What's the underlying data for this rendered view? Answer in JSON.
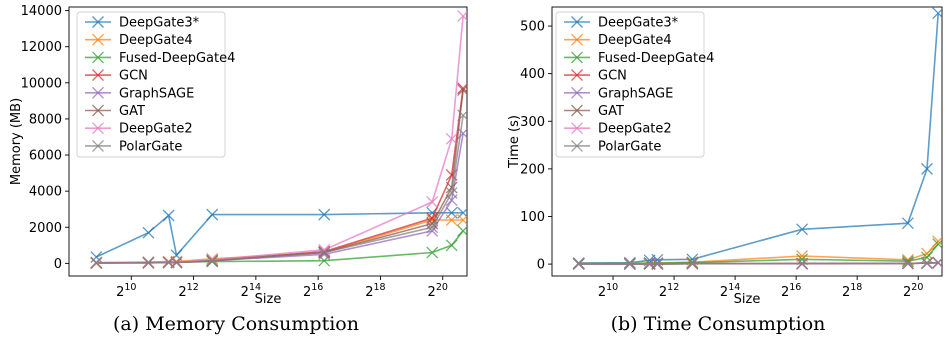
{
  "chart_data": [
    {
      "type": "line",
      "caption": "(a) Memory Consumption",
      "xlabel": "Size",
      "ylabel": "Memory (MB)",
      "xscale": "log2",
      "xlim": [
        256,
        1800000
      ],
      "ylim": [
        -700,
        14200
      ],
      "xticks": [
        {
          "value": 1024,
          "base": "2",
          "exp": "10"
        },
        {
          "value": 4096,
          "base": "2",
          "exp": "12"
        },
        {
          "value": 16384,
          "base": "2",
          "exp": "14"
        },
        {
          "value": 65536,
          "base": "2",
          "exp": "16"
        },
        {
          "value": 262144,
          "base": "2",
          "exp": "18"
        },
        {
          "value": 1048576,
          "base": "2",
          "exp": "20"
        }
      ],
      "yticks": [
        {
          "value": 0,
          "label": "0"
        },
        {
          "value": 2000,
          "label": "2000"
        },
        {
          "value": 4000,
          "label": "4000"
        },
        {
          "value": 6000,
          "label": "6000"
        },
        {
          "value": 8000,
          "label": "8000"
        },
        {
          "value": 10000,
          "label": "10000"
        },
        {
          "value": 12000,
          "label": "12000"
        },
        {
          "value": 14000,
          "label": "14000"
        }
      ],
      "legend_position": "top-left",
      "grid": false,
      "series": [
        {
          "name": "DeepGate3*",
          "color": "#1f77b4",
          "x": [
            470,
            1500,
            2350,
            2800,
            6200,
            75000,
            830000,
            1280000,
            1650000
          ],
          "y": [
            350,
            1700,
            2650,
            450,
            2700,
            2700,
            2800,
            2800,
            2800
          ]
        },
        {
          "name": "DeepGate4",
          "color": "#ff7f0e",
          "x": [
            470,
            1500,
            2350,
            2800,
            6200,
            75000,
            830000,
            1280000,
            1650000
          ],
          "y": [
            50,
            70,
            100,
            100,
            250,
            600,
            2400,
            2400,
            2400
          ]
        },
        {
          "name": "Fused-DeepGate4",
          "color": "#2ca02c",
          "x": [
            470,
            1500,
            2350,
            2800,
            6200,
            75000,
            830000,
            1280000,
            1650000
          ],
          "y": [
            30,
            40,
            60,
            60,
            100,
            150,
            600,
            1000,
            1800
          ]
        },
        {
          "name": "GCN",
          "color": "#d62728",
          "x": [
            470,
            1500,
            2350,
            2800,
            6200,
            75000,
            830000,
            1280000,
            1650000
          ],
          "y": [
            20,
            30,
            50,
            50,
            150,
            650,
            2500,
            4900,
            9700
          ]
        },
        {
          "name": "GraphSAGE",
          "color": "#9467bd",
          "x": [
            470,
            1500,
            2350,
            2800,
            6200,
            75000,
            830000,
            1280000,
            1650000
          ],
          "y": [
            20,
            30,
            50,
            50,
            150,
            500,
            1800,
            3500,
            7200
          ]
        },
        {
          "name": "GAT",
          "color": "#8c564b",
          "x": [
            470,
            1500,
            2350,
            2800,
            6200,
            75000,
            830000,
            1280000,
            1650000
          ],
          "y": [
            20,
            30,
            50,
            50,
            150,
            600,
            2200,
            4200,
            9600
          ]
        },
        {
          "name": "DeepGate2",
          "color": "#e377c2",
          "x": [
            470,
            1500,
            2350,
            2800,
            6200,
            75000,
            830000,
            1280000,
            1650000
          ],
          "y": [
            20,
            40,
            60,
            60,
            200,
            750,
            3400,
            6900,
            13700
          ]
        },
        {
          "name": "PolarGate",
          "color": "#7f7f7f",
          "x": [
            470,
            1500,
            2350,
            2800,
            6200,
            75000,
            830000,
            1280000,
            1650000
          ],
          "y": [
            20,
            30,
            50,
            50,
            150,
            600,
            2000,
            3900,
            8200
          ]
        }
      ]
    },
    {
      "type": "line",
      "caption": "(b) Time Consumption",
      "xlabel": "Size",
      "ylabel": "Time (s)",
      "xscale": "log2",
      "xlim": [
        256,
        1800000
      ],
      "ylim": [
        -25,
        540
      ],
      "xticks": [
        {
          "value": 1024,
          "base": "2",
          "exp": "10"
        },
        {
          "value": 4096,
          "base": "2",
          "exp": "12"
        },
        {
          "value": 16384,
          "base": "2",
          "exp": "14"
        },
        {
          "value": 65536,
          "base": "2",
          "exp": "16"
        },
        {
          "value": 262144,
          "base": "2",
          "exp": "18"
        },
        {
          "value": 1048576,
          "base": "2",
          "exp": "20"
        }
      ],
      "yticks": [
        {
          "value": 0,
          "label": "0"
        },
        {
          "value": 100,
          "label": "100"
        },
        {
          "value": 200,
          "label": "200"
        },
        {
          "value": 300,
          "label": "300"
        },
        {
          "value": 400,
          "label": "400"
        },
        {
          "value": 500,
          "label": "500"
        }
      ],
      "legend_position": "top-left",
      "grid": false,
      "series": [
        {
          "name": "DeepGate3*",
          "color": "#1f77b4",
          "x": [
            470,
            1500,
            2350,
            2800,
            6200,
            75000,
            830000,
            1280000,
            1650000
          ],
          "y": [
            2,
            3,
            8,
            9,
            10,
            73,
            86,
            200,
            527
          ]
        },
        {
          "name": "DeepGate4",
          "color": "#ff7f0e",
          "x": [
            470,
            1500,
            2350,
            2800,
            6200,
            75000,
            830000,
            1280000,
            1650000
          ],
          "y": [
            1,
            1,
            2,
            2,
            4,
            17,
            9,
            22,
            48
          ]
        },
        {
          "name": "Fused-DeepGate4",
          "color": "#2ca02c",
          "x": [
            470,
            1500,
            2350,
            2800,
            6200,
            75000,
            830000,
            1280000,
            1650000
          ],
          "y": [
            1,
            1,
            2,
            2,
            3,
            10,
            6,
            14,
            42
          ]
        },
        {
          "name": "GCN",
          "color": "#d62728",
          "x": [
            470,
            1500,
            2350,
            2800,
            6200,
            75000,
            830000,
            1280000,
            1650000
          ],
          "y": [
            0.3,
            0.3,
            0.5,
            0.5,
            0.8,
            1,
            1.5,
            2,
            3
          ]
        },
        {
          "name": "GraphSAGE",
          "color": "#9467bd",
          "x": [
            470,
            1500,
            2350,
            2800,
            6200,
            75000,
            830000,
            1280000,
            1650000
          ],
          "y": [
            0.3,
            0.3,
            0.5,
            0.5,
            0.8,
            1,
            1.5,
            2,
            3
          ]
        },
        {
          "name": "GAT",
          "color": "#8c564b",
          "x": [
            470,
            1500,
            2350,
            2800,
            6200,
            75000,
            830000,
            1280000,
            1650000
          ],
          "y": [
            0.3,
            0.3,
            0.5,
            0.5,
            0.8,
            1,
            1.5,
            2,
            3
          ]
        },
        {
          "name": "DeepGate2",
          "color": "#e377c2",
          "x": [
            470,
            1500,
            2350,
            2800,
            6200,
            75000,
            830000,
            1280000,
            1650000
          ],
          "y": [
            0.3,
            0.3,
            0.5,
            0.5,
            0.8,
            1,
            1.5,
            2,
            3
          ]
        },
        {
          "name": "PolarGate",
          "color": "#7f7f7f",
          "x": [
            470,
            1500,
            2350,
            2800,
            6200,
            75000,
            830000,
            1280000,
            1650000
          ],
          "y": [
            0.3,
            0.3,
            0.5,
            0.5,
            0.8,
            1,
            1.5,
            2,
            3
          ]
        }
      ]
    }
  ]
}
